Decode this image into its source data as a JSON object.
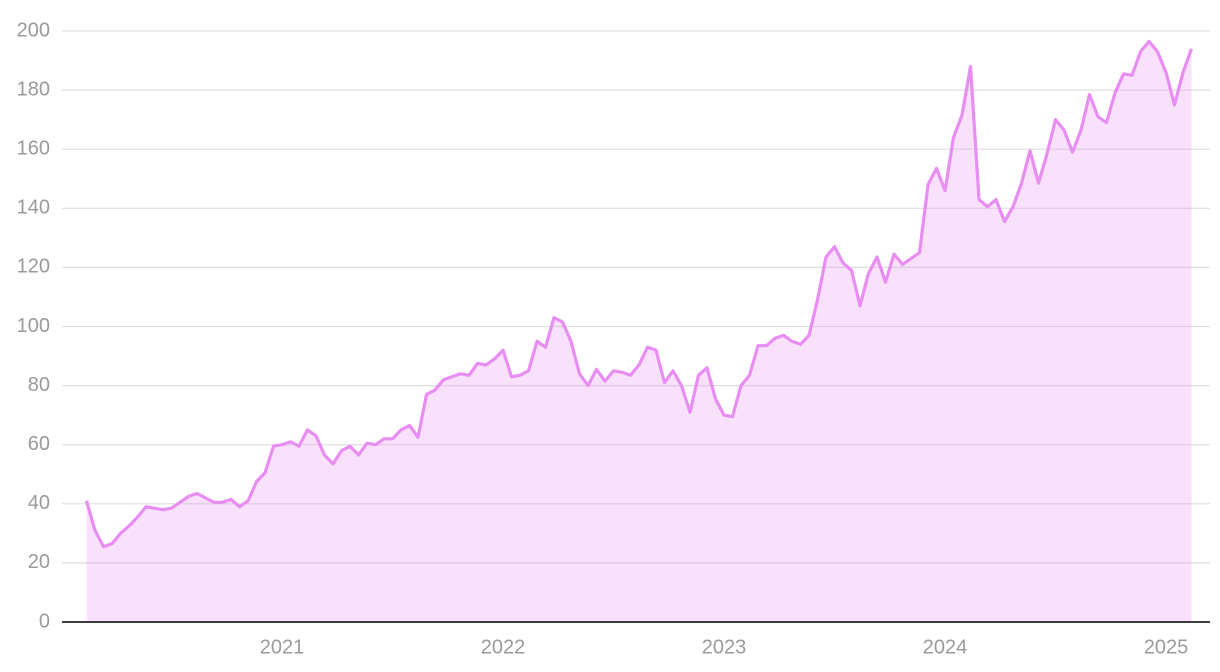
{
  "chart_data": {
    "type": "area",
    "color": "#e88df2",
    "grid": true,
    "ylim": [
      0,
      200
    ],
    "yticks": [
      0,
      20,
      40,
      60,
      80,
      100,
      120,
      140,
      160,
      180,
      200
    ],
    "categories": [
      null,
      null,
      null,
      null,
      null,
      null,
      null,
      null,
      null,
      null,
      null,
      null,
      null,
      null,
      null,
      null,
      null,
      null,
      null,
      null,
      null,
      null,
      null,
      "2021",
      null,
      null,
      null,
      null,
      null,
      null,
      null,
      null,
      null,
      null,
      null,
      null,
      null,
      null,
      null,
      null,
      null,
      null,
      null,
      null,
      null,
      null,
      null,
      null,
      null,
      "2022",
      null,
      null,
      null,
      null,
      null,
      null,
      null,
      null,
      null,
      null,
      null,
      null,
      null,
      null,
      null,
      null,
      null,
      null,
      null,
      null,
      null,
      null,
      null,
      null,
      null,
      "2023",
      null,
      null,
      null,
      null,
      null,
      null,
      null,
      null,
      null,
      null,
      null,
      null,
      null,
      null,
      null,
      null,
      null,
      null,
      null,
      null,
      null,
      null,
      null,
      null,
      null,
      "2024",
      null,
      null,
      null,
      null,
      null,
      null,
      null,
      null,
      null,
      null,
      null,
      null,
      null,
      null,
      null,
      null,
      null,
      null,
      null,
      null,
      null,
      null,
      null,
      null,
      null,
      "2025",
      null,
      null,
      null
    ],
    "values": [
      41,
      31,
      25.5,
      26.5,
      30,
      32.5,
      35.5,
      39,
      38.5,
      38,
      38.5,
      40.5,
      42.5,
      43.5,
      42,
      40.5,
      40.5,
      41.5,
      39,
      41,
      47.5,
      50.5,
      59.5,
      60,
      61,
      59.5,
      65,
      63,
      56.5,
      53.5,
      58,
      59.5,
      56.5,
      60.5,
      60,
      62,
      62,
      65,
      66.5,
      62.5,
      77,
      78.5,
      82,
      83,
      84,
      83.5,
      87.5,
      87,
      89,
      92,
      83,
      83.5,
      85,
      95,
      93,
      103,
      101.5,
      95,
      84,
      80,
      85.5,
      81.5,
      85,
      84.5,
      83.5,
      87,
      93,
      92,
      81,
      85,
      80,
      71,
      83.5,
      86,
      75.5,
      70,
      69.5,
      80,
      83.5,
      93.5,
      93.5,
      96,
      97,
      95,
      94,
      97,
      109,
      123.5,
      127,
      121.5,
      119,
      107,
      118,
      123.5,
      115,
      124.5,
      121,
      123,
      125,
      148,
      153.5,
      146,
      164,
      171.5,
      188,
      143,
      140.5,
      143,
      135.5,
      140.5,
      148.5,
      159.5,
      148.5,
      158.5,
      170,
      166.5,
      159,
      166.5,
      178.5,
      171,
      169,
      179,
      185.5,
      185,
      193,
      196.5,
      193,
      186,
      175,
      186,
      194
    ]
  }
}
